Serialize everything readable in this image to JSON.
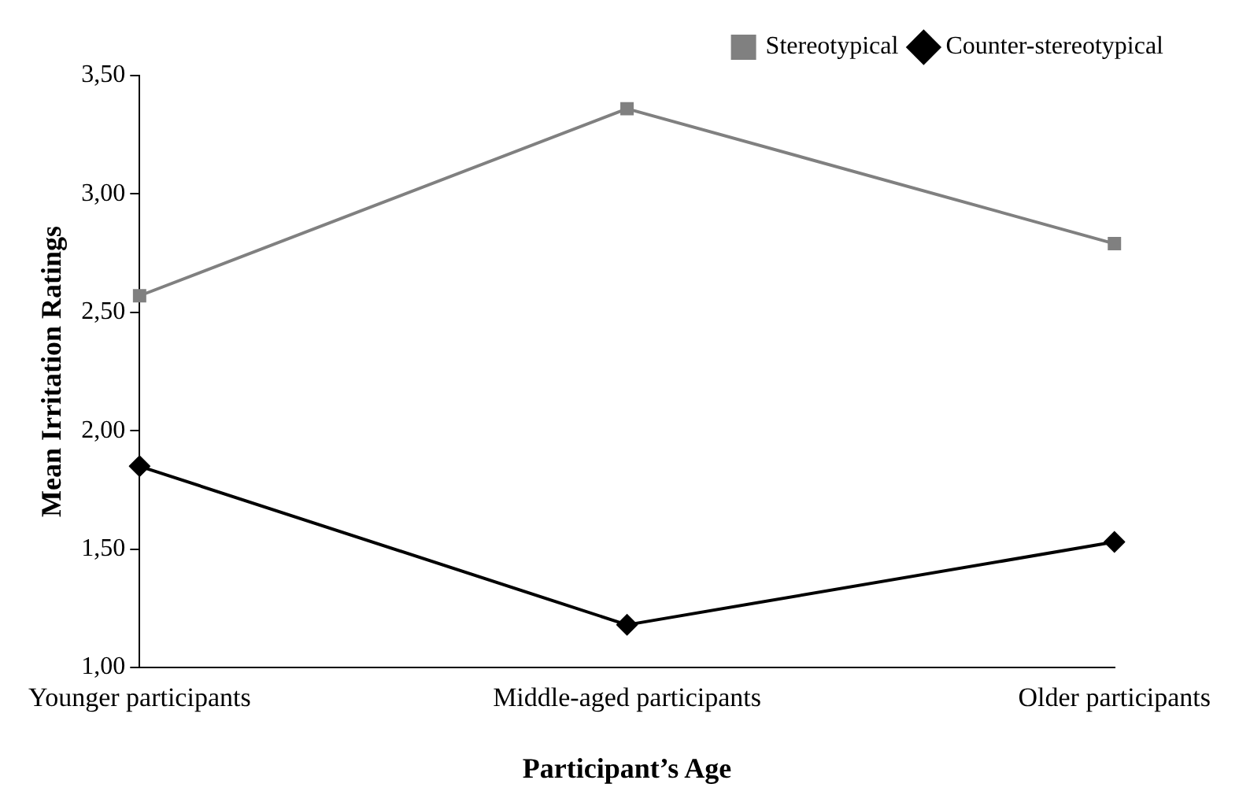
{
  "chart_data": {
    "type": "line",
    "xlabel": "Participant’s Age",
    "ylabel": "Mean Irritation Ratings",
    "categories": [
      "Younger participants",
      "Middle-aged participants",
      "Older participants"
    ],
    "series": [
      {
        "name": "Stereotypical",
        "color": "#808080",
        "values": [
          2.57,
          3.36,
          2.79
        ],
        "marker": "square"
      },
      {
        "name": "Counter-stereotypical",
        "color": "#000000",
        "values": [
          1.85,
          1.18,
          1.53
        ],
        "marker": "diamond"
      }
    ],
    "ylim": [
      1,
      3.5
    ],
    "yticks": [
      {
        "value": 1,
        "label": "1,00"
      },
      {
        "value": 1.5,
        "label": "1,50"
      },
      {
        "value": 2,
        "label": "2,00"
      },
      {
        "value": 2.5,
        "label": "2,50"
      },
      {
        "value": 3,
        "label": "3,00"
      },
      {
        "value": 3.5,
        "label": "3,50"
      }
    ],
    "grid": false,
    "legend": "top right",
    "line_style": "solid"
  }
}
